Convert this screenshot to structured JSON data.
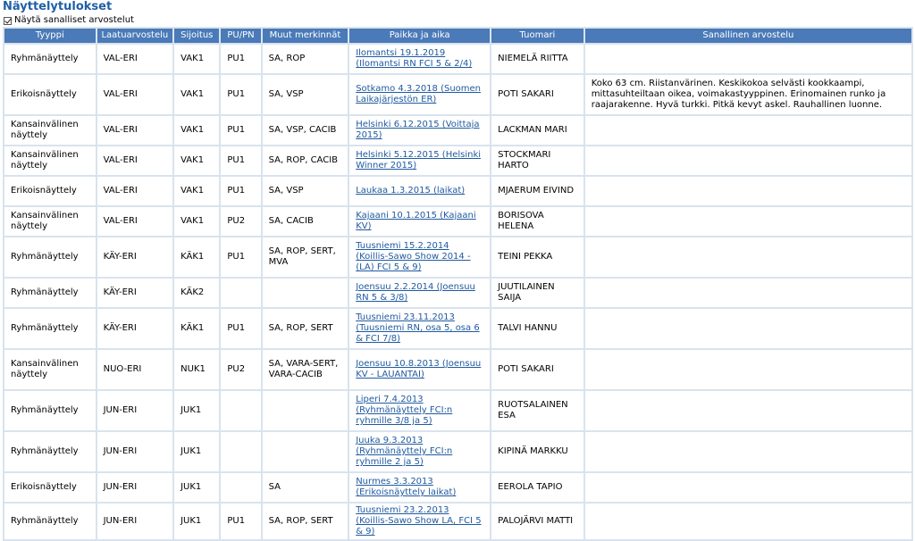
{
  "page": {
    "title": "Näyttelytulokset",
    "toggle_label": "Näytä sanalliset arvostelut",
    "toggle_checked": true
  },
  "table": {
    "headers": [
      "Tyyppi",
      "Laatuarvostelu",
      "Sijoitus",
      "PU/PN",
      "Muut merkinnät",
      "Paikka ja aika",
      "Tuomari",
      "Sanallinen arvostelu"
    ],
    "rows": [
      {
        "type": "Ryhmänäyttely",
        "quality": "VAL-ERI",
        "placing": "VAK1",
        "pu": "PU1",
        "other": "SA, ROP",
        "place": "Ilomantsi 19.1.2019 (Ilomantsi RN FCI 5 & 2/4)",
        "judge": "NIEMELÄ RIITTA",
        "review": ""
      },
      {
        "type": "Erikoisnäyttely",
        "quality": "VAL-ERI",
        "placing": "VAK1",
        "pu": "PU1",
        "other": "SA, VSP",
        "place": "Sotkamo 4.3.2018 (Suomen Laikajärjestön ER)",
        "judge": "POTI SAKARI",
        "review": "Koko 63 cm. Riistanvärinen. Keskikokoa selvästi kookkaampi, mittasuhteiltaan oikea, voimakastyyppinen. Erinomainen runko ja raajarakenne. Hyvä turkki. Pitkä kevyt askel. Rauhallinen luonne."
      },
      {
        "type": "Kansainvälinen näyttely",
        "quality": "VAL-ERI",
        "placing": "VAK1",
        "pu": "PU1",
        "other": "SA, VSP, CACIB",
        "place": "Helsinki 6.12.2015 (Voittaja 2015)",
        "judge": "LACKMAN MARI",
        "review": ""
      },
      {
        "type": "Kansainvälinen näyttely",
        "quality": "VAL-ERI",
        "placing": "VAK1",
        "pu": "PU1",
        "other": "SA, ROP, CACIB",
        "place": "Helsinki 5.12.2015 (Helsinki Winner 2015)",
        "judge": "STOCKMARI HARTO",
        "review": ""
      },
      {
        "type": "Erikoisnäyttely",
        "quality": "VAL-ERI",
        "placing": "VAK1",
        "pu": "PU1",
        "other": "SA, VSP",
        "place": "Laukaa 1.3.2015 (laikat)",
        "judge": "MJAERUM EIVIND",
        "review": ""
      },
      {
        "type": "Kansainvälinen näyttely",
        "quality": "VAL-ERI",
        "placing": "VAK1",
        "pu": "PU2",
        "other": "SA, CACIB",
        "place": "Kajaani 10.1.2015 (Kajaani KV)",
        "judge": "BORISOVA HELENA",
        "review": ""
      },
      {
        "type": "Ryhmänäyttely",
        "quality": "KÄY-ERI",
        "placing": "KÄK1",
        "pu": "PU1",
        "other": "SA, ROP, SERT, MVA",
        "place": "Tuusniemi 15.2.2014 (Koillis-Sawo Show 2014 - (LA) FCI 5 & 9)",
        "judge": "TEINI PEKKA",
        "review": ""
      },
      {
        "type": "Ryhmänäyttely",
        "quality": "KÄY-ERI",
        "placing": "KÄK2",
        "pu": "",
        "other": "",
        "place": "Joensuu 2.2.2014 (Joensuu RN 5 & 3/8)",
        "judge": "JUUTILAINEN SAIJA",
        "review": ""
      },
      {
        "type": "Ryhmänäyttely",
        "quality": "KÄY-ERI",
        "placing": "KÄK1",
        "pu": "PU1",
        "other": "SA, ROP, SERT",
        "place": "Tuusniemi 23.11.2013 (Tuusniemi RN, osa 5, osa 6 & FCI 7/8)",
        "judge": "TALVI HANNU",
        "review": ""
      },
      {
        "type": "Kansainvälinen näyttely",
        "quality": "NUO-ERI",
        "placing": "NUK1",
        "pu": "PU2",
        "other": "SA, VARA-SERT, VARA-CACIB",
        "place": "Joensuu 10.8.2013 (Joensuu KV - LAUANTAI)",
        "judge": "POTI SAKARI",
        "review": ""
      },
      {
        "type": "Ryhmänäyttely",
        "quality": "JUN-ERI",
        "placing": "JUK1",
        "pu": "",
        "other": "",
        "place": "Liperi 7.4.2013 (Ryhmänäyttely FCI:n ryhmille 3/8 ja 5)",
        "judge": "RUOTSALAINEN ESA",
        "review": ""
      },
      {
        "type": "Ryhmänäyttely",
        "quality": "JUN-ERI",
        "placing": "JUK1",
        "pu": "",
        "other": "",
        "place": "Juuka 9.3.2013 (Ryhmänäyttely FCI:n ryhmille 2 ja 5)",
        "judge": "KIPINÄ MARKKU",
        "review": ""
      },
      {
        "type": "Erikoisnäyttely",
        "quality": "JUN-ERI",
        "placing": "JUK1",
        "pu": "",
        "other": "SA",
        "place": "Nurmes 3.3.2013 (Erikoisnäyttely laikat)",
        "judge": "EEROLA TAPIO",
        "review": ""
      },
      {
        "type": "Ryhmänäyttely",
        "quality": "JUN-ERI",
        "placing": "JUK1",
        "pu": "PU1",
        "other": "SA, ROP, SERT",
        "place": "Tuusniemi 23.2.2013 (Koillis-Sawo Show LA, FCI 5 & 9)",
        "judge": "PALOJÄRVI MATTI",
        "review": ""
      }
    ]
  }
}
